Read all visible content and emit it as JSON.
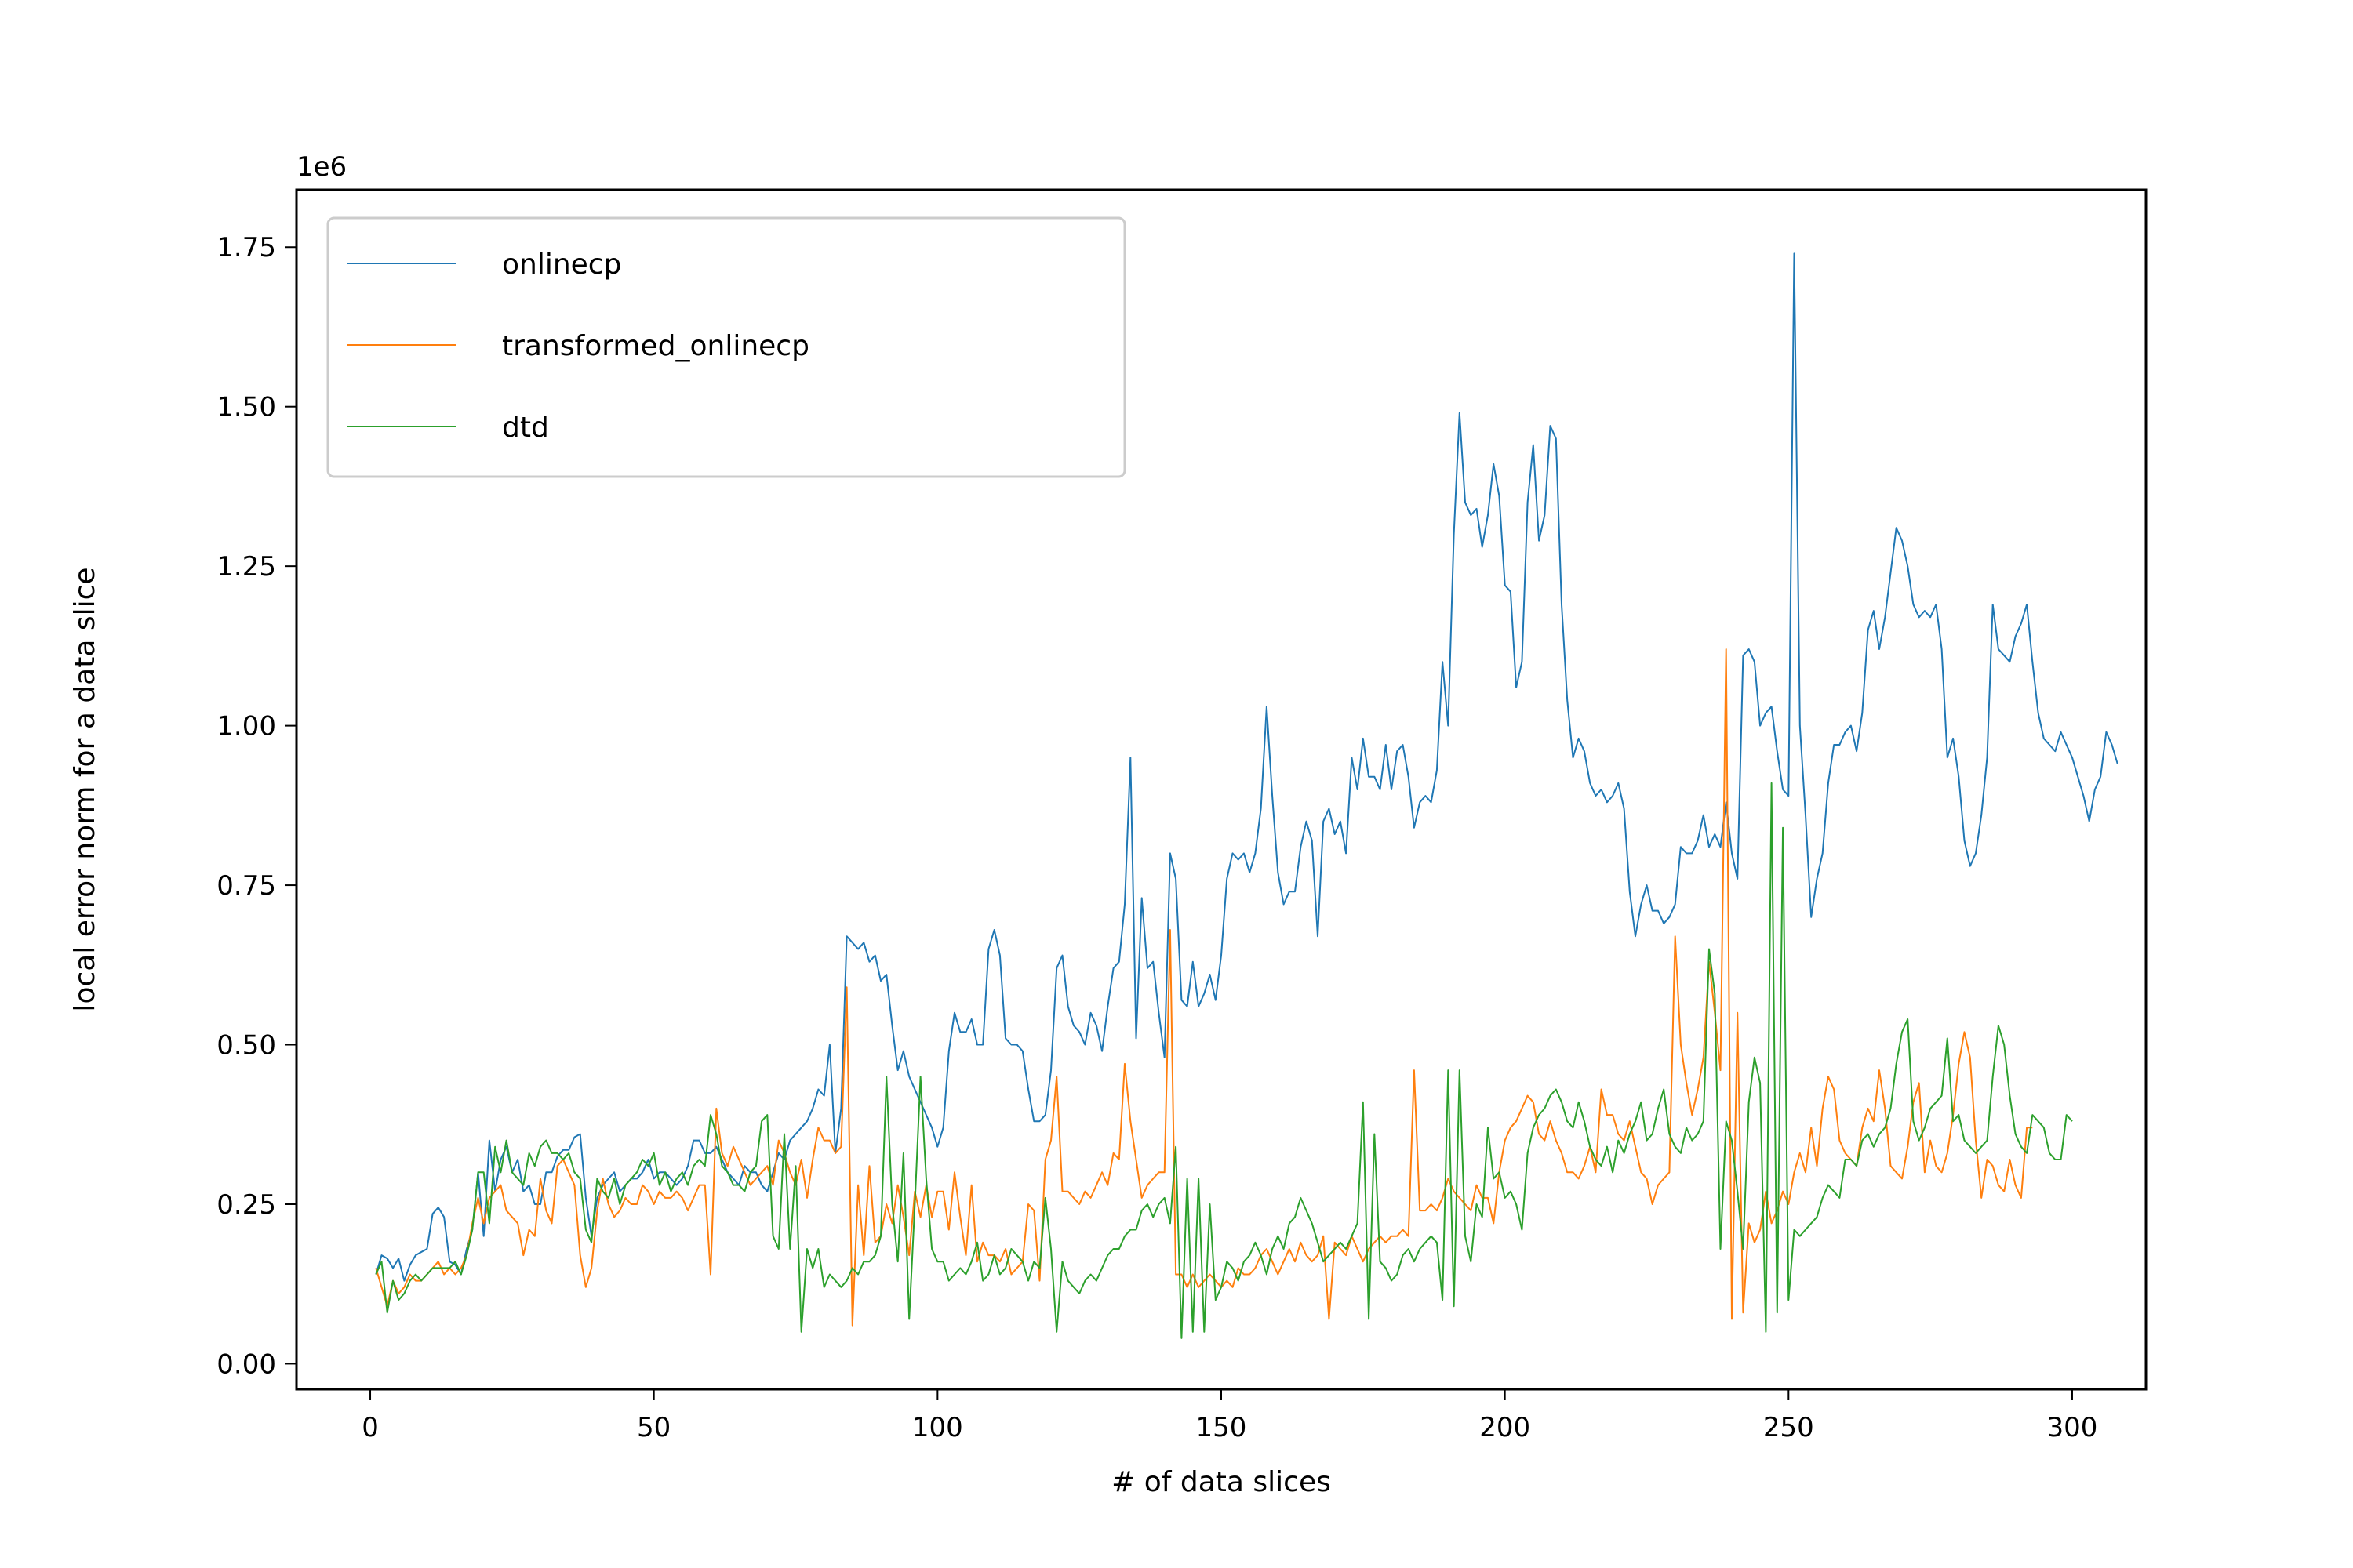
{
  "chart_data": {
    "type": "line",
    "title": "",
    "xlabel": "# of data slices",
    "ylabel": "local error norm for a data slice",
    "y_offset_label": "1e6",
    "xlim": [
      -13,
      313
    ],
    "ylim": [
      -0.04,
      1.84
    ],
    "x_ticks": [
      0,
      50,
      100,
      150,
      200,
      250,
      300
    ],
    "y_ticks": [
      0.0,
      0.25,
      0.5,
      0.75,
      1.0,
      1.25,
      1.5,
      1.75
    ],
    "x_tick_labels": [
      "0",
      "50",
      "100",
      "150",
      "200",
      "250",
      "300"
    ],
    "y_tick_labels": [
      "0.00",
      "0.25",
      "0.50",
      "0.75",
      "1.00",
      "1.25",
      "1.50",
      "1.75"
    ],
    "grid": false,
    "legend_position": "top-left",
    "x_start": 1,
    "series": [
      {
        "name": "onlinecp",
        "color": "#1f77b4",
        "values": [
          0.14,
          0.17,
          0.165,
          0.15,
          0.165,
          0.13,
          0.155,
          0.17,
          0.175,
          0.18,
          0.235,
          0.245,
          0.23,
          0.16,
          0.155,
          0.14,
          0.18,
          0.21,
          0.3,
          0.2,
          0.35,
          0.27,
          0.32,
          0.34,
          0.3,
          0.32,
          0.27,
          0.28,
          0.25,
          0.25,
          0.3,
          0.3,
          0.325,
          0.335,
          0.335,
          0.355,
          0.36,
          0.26,
          0.2,
          0.26,
          0.28,
          0.29,
          0.3,
          0.27,
          0.28,
          0.29,
          0.29,
          0.3,
          0.32,
          0.29,
          0.3,
          0.3,
          0.29,
          0.28,
          0.29,
          0.31,
          0.35,
          0.35,
          0.33,
          0.33,
          0.34,
          0.32,
          0.3,
          0.29,
          0.28,
          0.31,
          0.3,
          0.3,
          0.28,
          0.27,
          0.3,
          0.33,
          0.32,
          0.35,
          0.36,
          0.37,
          0.38,
          0.4,
          0.43,
          0.42,
          0.5,
          0.33,
          0.4,
          0.67,
          0.66,
          0.65,
          0.66,
          0.63,
          0.64,
          0.6,
          0.61,
          0.53,
          0.46,
          0.49,
          0.45,
          0.43,
          0.41,
          0.39,
          0.37,
          0.34,
          0.37,
          0.49,
          0.55,
          0.52,
          0.52,
          0.54,
          0.5,
          0.5,
          0.65,
          0.68,
          0.64,
          0.51,
          0.5,
          0.5,
          0.49,
          0.43,
          0.38,
          0.38,
          0.39,
          0.46,
          0.62,
          0.64,
          0.56,
          0.53,
          0.52,
          0.5,
          0.55,
          0.53,
          0.49,
          0.56,
          0.62,
          0.63,
          0.72,
          0.95,
          0.51,
          0.73,
          0.62,
          0.63,
          0.55,
          0.48,
          0.8,
          0.76,
          0.57,
          0.56,
          0.63,
          0.56,
          0.58,
          0.61,
          0.57,
          0.64,
          0.76,
          0.8,
          0.79,
          0.8,
          0.77,
          0.8,
          0.87,
          1.03,
          0.89,
          0.77,
          0.72,
          0.74,
          0.74,
          0.81,
          0.85,
          0.82,
          0.67,
          0.85,
          0.87,
          0.83,
          0.85,
          0.8,
          0.95,
          0.9,
          0.98,
          0.92,
          0.92,
          0.9,
          0.97,
          0.9,
          0.96,
          0.97,
          0.92,
          0.84,
          0.88,
          0.89,
          0.88,
          0.93,
          1.1,
          1.0,
          1.3,
          1.49,
          1.35,
          1.33,
          1.34,
          1.28,
          1.33,
          1.41,
          1.36,
          1.22,
          1.21,
          1.06,
          1.1,
          1.35,
          1.44,
          1.29,
          1.33,
          1.47,
          1.45,
          1.19,
          1.04,
          0.95,
          0.98,
          0.96,
          0.91,
          0.89,
          0.9,
          0.88,
          0.89,
          0.91,
          0.87,
          0.74,
          0.67,
          0.72,
          0.75,
          0.71,
          0.71,
          0.69,
          0.7,
          0.72,
          0.81,
          0.8,
          0.8,
          0.82,
          0.86,
          0.81,
          0.83,
          0.81,
          0.88,
          0.8,
          0.76,
          1.11,
          1.12,
          1.1,
          1.0,
          1.02,
          1.03,
          0.96,
          0.9,
          0.89,
          1.74,
          1.0,
          0.86,
          0.7,
          0.76,
          0.8,
          0.91,
          0.97,
          0.97,
          0.99,
          1.0,
          0.96,
          1.02,
          1.15,
          1.18,
          1.12,
          1.17,
          1.24,
          1.31,
          1.29,
          1.25,
          1.19,
          1.17,
          1.18,
          1.17,
          1.19,
          1.12,
          0.95,
          0.98,
          0.92,
          0.82,
          0.78,
          0.8,
          0.86,
          0.95,
          1.19,
          1.12,
          1.11,
          1.1,
          1.14,
          1.16,
          1.19,
          1.1,
          1.02,
          0.98,
          0.97,
          0.96,
          0.99,
          0.97,
          0.95,
          0.92,
          0.89,
          0.85,
          0.9,
          0.92,
          0.99,
          0.97,
          0.94
        ]
      },
      {
        "name": "transformed_onlinecp",
        "color": "#ff7f0e",
        "values": [
          0.15,
          0.12,
          0.09,
          0.13,
          0.11,
          0.12,
          0.14,
          0.13,
          0.13,
          0.14,
          0.15,
          0.16,
          0.14,
          0.15,
          0.14,
          0.15,
          0.17,
          0.22,
          0.26,
          0.22,
          0.26,
          0.27,
          0.28,
          0.24,
          0.23,
          0.22,
          0.17,
          0.21,
          0.2,
          0.29,
          0.24,
          0.22,
          0.31,
          0.32,
          0.3,
          0.28,
          0.17,
          0.12,
          0.15,
          0.24,
          0.29,
          0.25,
          0.23,
          0.24,
          0.26,
          0.25,
          0.25,
          0.28,
          0.27,
          0.25,
          0.27,
          0.26,
          0.26,
          0.27,
          0.26,
          0.24,
          0.26,
          0.28,
          0.28,
          0.14,
          0.4,
          0.33,
          0.31,
          0.34,
          0.32,
          0.3,
          0.28,
          0.29,
          0.3,
          0.31,
          0.28,
          0.35,
          0.33,
          0.3,
          0.28,
          0.32,
          0.26,
          0.32,
          0.37,
          0.35,
          0.35,
          0.33,
          0.34,
          0.59,
          0.06,
          0.28,
          0.17,
          0.31,
          0.19,
          0.2,
          0.25,
          0.22,
          0.28,
          0.23,
          0.17,
          0.27,
          0.23,
          0.28,
          0.23,
          0.27,
          0.27,
          0.21,
          0.3,
          0.23,
          0.17,
          0.28,
          0.16,
          0.19,
          0.17,
          0.17,
          0.16,
          0.18,
          0.14,
          0.15,
          0.16,
          0.25,
          0.24,
          0.13,
          0.32,
          0.35,
          0.45,
          0.27,
          0.27,
          0.26,
          0.25,
          0.27,
          0.26,
          0.28,
          0.3,
          0.28,
          0.33,
          0.32,
          0.47,
          0.38,
          0.32,
          0.26,
          0.28,
          0.29,
          0.3,
          0.3,
          0.68,
          0.14,
          0.14,
          0.12,
          0.14,
          0.12,
          0.13,
          0.14,
          0.13,
          0.12,
          0.13,
          0.12,
          0.15,
          0.14,
          0.14,
          0.15,
          0.17,
          0.18,
          0.16,
          0.14,
          0.16,
          0.18,
          0.16,
          0.19,
          0.17,
          0.16,
          0.17,
          0.2,
          0.07,
          0.19,
          0.18,
          0.17,
          0.2,
          0.18,
          0.16,
          0.18,
          0.19,
          0.2,
          0.19,
          0.2,
          0.2,
          0.21,
          0.2,
          0.46,
          0.24,
          0.24,
          0.25,
          0.24,
          0.26,
          0.29,
          0.27,
          0.26,
          0.25,
          0.24,
          0.28,
          0.26,
          0.26,
          0.22,
          0.3,
          0.35,
          0.37,
          0.38,
          0.4,
          0.42,
          0.41,
          0.36,
          0.35,
          0.38,
          0.35,
          0.33,
          0.3,
          0.3,
          0.29,
          0.31,
          0.34,
          0.3,
          0.43,
          0.39,
          0.39,
          0.36,
          0.35,
          0.38,
          0.34,
          0.3,
          0.29,
          0.25,
          0.28,
          0.29,
          0.3,
          0.67,
          0.5,
          0.44,
          0.39,
          0.43,
          0.48,
          0.63,
          0.55,
          0.46,
          1.12,
          0.07,
          0.55,
          0.08,
          0.22,
          0.19,
          0.21,
          0.27,
          0.22,
          0.24,
          0.27,
          0.25,
          0.3,
          0.33,
          0.3,
          0.37,
          0.31,
          0.4,
          0.45,
          0.43,
          0.35,
          0.33,
          0.32,
          0.31,
          0.37,
          0.4,
          0.38,
          0.46,
          0.4,
          0.31,
          0.3,
          0.29,
          0.34,
          0.41,
          0.44,
          0.3,
          0.35,
          0.31,
          0.3,
          0.33,
          0.39,
          0.47,
          0.52,
          0.48,
          0.35,
          0.26,
          0.32,
          0.31,
          0.28,
          0.27,
          0.32,
          0.28,
          0.26,
          0.37,
          0.37
        ]
      },
      {
        "name": "dtd",
        "color": "#2ca02c",
        "values": [
          0.14,
          0.16,
          0.08,
          0.13,
          0.1,
          0.11,
          0.13,
          0.14,
          0.13,
          0.14,
          0.15,
          0.15,
          0.15,
          0.15,
          0.16,
          0.14,
          0.17,
          0.21,
          0.3,
          0.3,
          0.22,
          0.34,
          0.3,
          0.35,
          0.3,
          0.29,
          0.28,
          0.33,
          0.31,
          0.34,
          0.35,
          0.33,
          0.33,
          0.32,
          0.33,
          0.3,
          0.29,
          0.21,
          0.19,
          0.29,
          0.27,
          0.26,
          0.29,
          0.25,
          0.28,
          0.29,
          0.3,
          0.32,
          0.31,
          0.33,
          0.28,
          0.3,
          0.27,
          0.29,
          0.3,
          0.28,
          0.31,
          0.32,
          0.31,
          0.39,
          0.36,
          0.31,
          0.3,
          0.28,
          0.28,
          0.27,
          0.3,
          0.31,
          0.38,
          0.39,
          0.2,
          0.18,
          0.36,
          0.18,
          0.31,
          0.05,
          0.18,
          0.15,
          0.18,
          0.12,
          0.14,
          0.13,
          0.12,
          0.13,
          0.15,
          0.14,
          0.16,
          0.16,
          0.17,
          0.2,
          0.45,
          0.25,
          0.16,
          0.33,
          0.07,
          0.25,
          0.45,
          0.29,
          0.18,
          0.16,
          0.16,
          0.13,
          0.14,
          0.15,
          0.14,
          0.16,
          0.19,
          0.13,
          0.14,
          0.17,
          0.14,
          0.15,
          0.18,
          0.17,
          0.16,
          0.13,
          0.16,
          0.15,
          0.26,
          0.18,
          0.05,
          0.16,
          0.13,
          0.12,
          0.11,
          0.13,
          0.14,
          0.13,
          0.15,
          0.17,
          0.18,
          0.18,
          0.2,
          0.21,
          0.21,
          0.24,
          0.25,
          0.23,
          0.25,
          0.26,
          0.22,
          0.34,
          0.04,
          0.29,
          0.05,
          0.29,
          0.05,
          0.25,
          0.1,
          0.12,
          0.16,
          0.15,
          0.13,
          0.16,
          0.17,
          0.19,
          0.17,
          0.14,
          0.18,
          0.2,
          0.18,
          0.22,
          0.23,
          0.26,
          0.24,
          0.22,
          0.19,
          0.16,
          0.17,
          0.18,
          0.19,
          0.18,
          0.2,
          0.22,
          0.41,
          0.07,
          0.36,
          0.16,
          0.15,
          0.13,
          0.14,
          0.17,
          0.18,
          0.16,
          0.18,
          0.19,
          0.2,
          0.19,
          0.1,
          0.46,
          0.09,
          0.46,
          0.2,
          0.16,
          0.25,
          0.23,
          0.37,
          0.29,
          0.3,
          0.26,
          0.27,
          0.25,
          0.21,
          0.33,
          0.37,
          0.39,
          0.4,
          0.42,
          0.43,
          0.41,
          0.38,
          0.37,
          0.41,
          0.38,
          0.34,
          0.32,
          0.31,
          0.34,
          0.3,
          0.35,
          0.33,
          0.36,
          0.38,
          0.41,
          0.35,
          0.36,
          0.4,
          0.43,
          0.36,
          0.34,
          0.33,
          0.37,
          0.35,
          0.36,
          0.38,
          0.65,
          0.58,
          0.18,
          0.38,
          0.35,
          0.27,
          0.18,
          0.41,
          0.48,
          0.44,
          0.05,
          0.91,
          0.08,
          0.84,
          0.1,
          0.21,
          0.2,
          0.21,
          0.22,
          0.23,
          0.26,
          0.28,
          0.27,
          0.26,
          0.32,
          0.32,
          0.31,
          0.35,
          0.36,
          0.34,
          0.36,
          0.37,
          0.4,
          0.47,
          0.52,
          0.54,
          0.38,
          0.35,
          0.37,
          0.4,
          0.41,
          0.42,
          0.51,
          0.38,
          0.39,
          0.35,
          0.34,
          0.33,
          0.34,
          0.35,
          0.45,
          0.53,
          0.5,
          0.42,
          0.36,
          0.34,
          0.33,
          0.39,
          0.38,
          0.37,
          0.33,
          0.32,
          0.32,
          0.39,
          0.38
        ]
      }
    ]
  }
}
